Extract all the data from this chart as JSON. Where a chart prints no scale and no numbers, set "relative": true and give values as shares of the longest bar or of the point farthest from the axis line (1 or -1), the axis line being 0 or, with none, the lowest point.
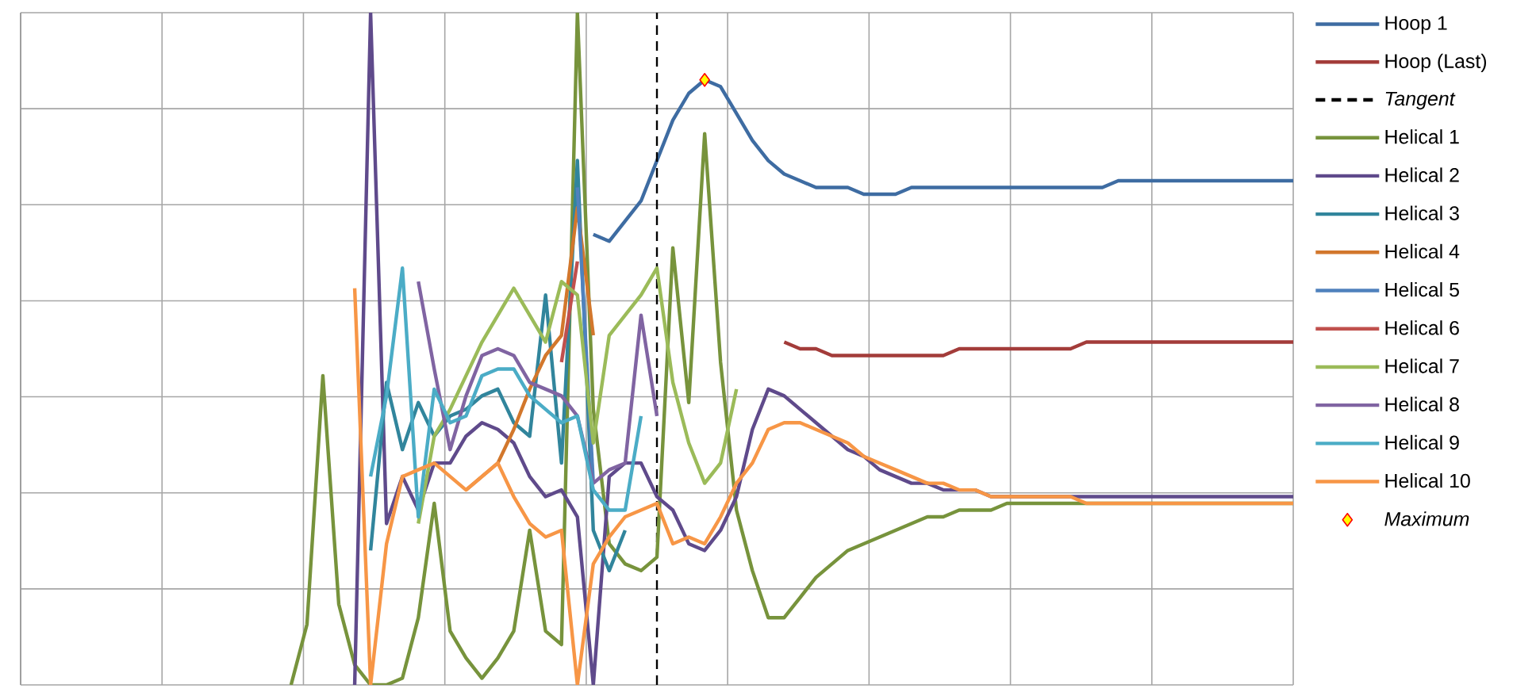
{
  "chart_data": {
    "type": "line",
    "relative": true,
    "grid": true,
    "legend": "right",
    "tick_labels": false,
    "line_style": "solid",
    "categories": [
      null,
      null,
      null,
      null,
      null,
      null,
      null,
      null,
      null,
      null,
      null,
      null,
      null,
      null,
      null,
      null,
      null,
      null,
      null,
      null,
      null,
      null,
      null,
      null,
      null,
      null,
      null,
      null,
      null,
      null,
      null,
      null,
      null,
      null,
      null,
      null,
      null,
      null,
      null,
      null,
      null,
      null,
      null,
      null,
      null,
      null,
      null,
      null,
      null,
      null,
      null,
      null,
      null,
      null,
      null,
      null,
      null,
      null,
      null,
      null,
      null,
      null,
      null,
      null,
      null,
      null,
      null,
      null,
      null,
      null,
      null,
      null,
      null,
      null,
      null,
      null,
      null,
      null,
      null,
      null,
      null
    ],
    "ref_lines": [
      {
        "axis": "x",
        "label": "Tangent",
        "color": "#000000",
        "line_style": "dashed"
      }
    ],
    "series": [
      {
        "name": "Hoop 1",
        "color": "#3e6ca2",
        "values": [
          null,
          null,
          null,
          null,
          null,
          null,
          null,
          null,
          null,
          null,
          null,
          null,
          null,
          null,
          null,
          null,
          null,
          null,
          null,
          null,
          null,
          null,
          null,
          null,
          null,
          null,
          null,
          null,
          null,
          null,
          null,
          null,
          null,
          null,
          null,
          null,
          0.67,
          0.66,
          0.69,
          0.72,
          0.78,
          0.84,
          0.88,
          0.9,
          0.89,
          0.85,
          0.81,
          0.78,
          0.76,
          0.75,
          0.74,
          0.74,
          0.74,
          0.73,
          0.73,
          0.73,
          0.74,
          0.74,
          0.74,
          0.74,
          0.74,
          0.74,
          0.74,
          0.74,
          0.74,
          0.74,
          0.74,
          0.74,
          0.74,
          0.75,
          0.75,
          0.75,
          0.75,
          0.75,
          0.75,
          0.75,
          0.75,
          0.75,
          0.75,
          0.75,
          0.75
        ]
      },
      {
        "name": "Hoop (Last)",
        "color": "#a33c3a",
        "values": [
          null,
          null,
          null,
          null,
          null,
          null,
          null,
          null,
          null,
          null,
          null,
          null,
          null,
          null,
          null,
          null,
          null,
          null,
          null,
          null,
          null,
          null,
          null,
          null,
          null,
          null,
          null,
          null,
          null,
          null,
          null,
          null,
          null,
          null,
          null,
          null,
          null,
          null,
          null,
          null,
          null,
          null,
          null,
          null,
          null,
          null,
          null,
          null,
          0.51,
          0.5,
          0.5,
          0.49,
          0.49,
          0.49,
          0.49,
          0.49,
          0.49,
          0.49,
          0.49,
          0.5,
          0.5,
          0.5,
          0.5,
          0.5,
          0.5,
          0.5,
          0.5,
          0.51,
          0.51,
          0.51,
          0.51,
          0.51,
          0.51,
          0.51,
          0.51,
          0.51,
          0.51,
          0.51,
          0.51,
          0.51,
          0.51
        ]
      },
      {
        "name": "Helical 1",
        "color": "#77933c",
        "values": [
          null,
          null,
          null,
          null,
          null,
          null,
          null,
          null,
          null,
          null,
          null,
          null,
          null,
          null,
          null,
          null,
          null,
          0.0,
          0.09,
          0.46,
          0.12,
          0.03,
          0.0,
          0.0,
          0.01,
          0.1,
          0.27,
          0.08,
          0.04,
          0.01,
          0.04,
          0.08,
          0.23,
          0.08,
          0.06,
          1.0,
          0.41,
          0.21,
          0.18,
          0.17,
          0.19,
          0.65,
          0.42,
          0.82,
          0.48,
          0.26,
          0.17,
          0.1,
          0.1,
          0.13,
          0.16,
          0.18,
          0.2,
          0.21,
          0.22,
          0.23,
          0.24,
          0.25,
          0.25,
          0.26,
          0.26,
          0.26,
          0.27,
          0.27,
          0.27,
          0.27,
          0.27,
          0.27,
          0.27,
          0.27,
          0.27,
          0.27,
          0.27,
          0.27,
          0.27,
          0.27,
          0.27,
          0.27,
          0.27,
          0.27,
          0.27
        ]
      },
      {
        "name": "Helical 2",
        "color": "#5f4a8b",
        "values": [
          null,
          null,
          null,
          null,
          null,
          null,
          null,
          null,
          null,
          null,
          null,
          null,
          null,
          null,
          null,
          null,
          null,
          null,
          null,
          null,
          null,
          0.0,
          1.0,
          0.24,
          0.31,
          0.26,
          0.33,
          0.33,
          0.37,
          0.39,
          0.38,
          0.36,
          0.31,
          0.28,
          0.29,
          0.25,
          0.0,
          0.31,
          0.33,
          0.33,
          0.28,
          0.26,
          0.21,
          0.2,
          0.23,
          0.28,
          0.38,
          0.44,
          0.43,
          0.41,
          0.39,
          0.37,
          0.35,
          0.34,
          0.32,
          0.31,
          0.3,
          0.3,
          0.29,
          0.29,
          0.29,
          0.28,
          0.28,
          0.28,
          0.28,
          0.28,
          0.28,
          0.28,
          0.28,
          0.28,
          0.28,
          0.28,
          0.28,
          0.28,
          0.28,
          0.28,
          0.28,
          0.28,
          0.28,
          0.28,
          0.28
        ]
      },
      {
        "name": "Helical 3",
        "color": "#31859c",
        "values": [
          null,
          null,
          null,
          null,
          null,
          null,
          null,
          null,
          null,
          null,
          null,
          null,
          null,
          null,
          null,
          null,
          null,
          null,
          null,
          null,
          null,
          null,
          0.2,
          0.45,
          0.35,
          0.42,
          0.37,
          0.4,
          0.41,
          0.43,
          0.44,
          0.39,
          0.37,
          0.58,
          0.33,
          0.78,
          0.23,
          0.17,
          0.23,
          null,
          null,
          null,
          null,
          null,
          null,
          null,
          null,
          null,
          null,
          null,
          null,
          null,
          null,
          null,
          null,
          null,
          null,
          null,
          null,
          null,
          null,
          null,
          null,
          null,
          null,
          null,
          null,
          null,
          null,
          null,
          null,
          null,
          null,
          null,
          null,
          null,
          null,
          null,
          null,
          null,
          null
        ]
      },
      {
        "name": "Helical 4",
        "color": "#d2772c",
        "values": [
          null,
          null,
          null,
          null,
          null,
          null,
          null,
          null,
          null,
          null,
          null,
          null,
          null,
          null,
          null,
          null,
          null,
          null,
          null,
          null,
          null,
          null,
          null,
          null,
          null,
          null,
          null,
          null,
          0.29,
          0.31,
          0.33,
          0.38,
          0.44,
          0.49,
          0.52,
          0.71,
          0.52,
          null,
          null,
          null,
          null,
          null,
          null,
          null,
          null,
          null,
          null,
          null,
          null,
          null,
          null,
          null,
          null,
          null,
          null,
          null,
          null,
          null,
          null,
          null,
          null,
          null,
          null,
          null,
          null,
          null,
          null,
          null,
          null,
          null,
          null,
          null,
          null,
          null,
          null,
          null,
          null,
          null,
          null,
          null,
          null
        ]
      },
      {
        "name": "Helical 5",
        "color": "#4f81bd",
        "values": [
          null,
          null,
          null,
          null,
          null,
          null,
          null,
          null,
          null,
          null,
          null,
          null,
          null,
          null,
          null,
          null,
          null,
          null,
          null,
          null,
          null,
          null,
          null,
          null,
          null,
          null,
          null,
          null,
          null,
          null,
          null,
          null,
          null,
          null,
          null,
          0.74,
          0.3,
          null,
          null,
          null,
          null,
          null,
          null,
          null,
          null,
          null,
          null,
          null,
          null,
          null,
          null,
          null,
          null,
          null,
          null,
          null,
          null,
          null,
          null,
          null,
          null,
          null,
          null,
          null,
          null,
          null,
          null,
          null,
          null,
          null,
          null,
          null,
          null,
          null,
          null,
          null,
          null,
          null,
          null,
          null,
          null
        ]
      },
      {
        "name": "Helical 6",
        "color": "#c0504d",
        "values": [
          null,
          null,
          null,
          null,
          null,
          null,
          null,
          null,
          null,
          null,
          null,
          null,
          null,
          null,
          null,
          null,
          null,
          null,
          null,
          null,
          null,
          null,
          null,
          null,
          null,
          null,
          null,
          null,
          null,
          null,
          null,
          null,
          null,
          null,
          0.48,
          0.63,
          null,
          null,
          null,
          null,
          null,
          null,
          null,
          null,
          null,
          null,
          null,
          null,
          null,
          null,
          null,
          null,
          null,
          null,
          null,
          null,
          null,
          null,
          null,
          null,
          null,
          null,
          null,
          null,
          null,
          null,
          null,
          null,
          null,
          null,
          null,
          null,
          null,
          null,
          null,
          null,
          null,
          null,
          null,
          null,
          null
        ]
      },
      {
        "name": "Helical 7",
        "color": "#9bbb59",
        "values": [
          null,
          null,
          null,
          null,
          null,
          null,
          null,
          null,
          null,
          null,
          null,
          null,
          null,
          null,
          null,
          null,
          null,
          null,
          null,
          null,
          null,
          null,
          null,
          null,
          null,
          0.24,
          0.37,
          0.41,
          0.46,
          0.51,
          0.55,
          0.59,
          0.55,
          0.51,
          0.6,
          0.58,
          0.36,
          0.52,
          0.55,
          0.58,
          0.62,
          0.45,
          0.36,
          0.3,
          0.33,
          0.44,
          null,
          null,
          null,
          null,
          null,
          null,
          null,
          null,
          null,
          null,
          null,
          null,
          null,
          null,
          null,
          null,
          null,
          null,
          null,
          null,
          null,
          null,
          null,
          null,
          null,
          null,
          null,
          null,
          null,
          null,
          null,
          null,
          null,
          null,
          null
        ]
      },
      {
        "name": "Helical 8",
        "color": "#8064a2",
        "values": [
          null,
          null,
          null,
          null,
          null,
          null,
          null,
          null,
          null,
          null,
          null,
          null,
          null,
          null,
          null,
          null,
          null,
          null,
          null,
          null,
          null,
          null,
          null,
          null,
          null,
          0.6,
          0.47,
          0.35,
          0.43,
          0.49,
          0.5,
          0.49,
          0.45,
          0.44,
          0.43,
          0.4,
          0.3,
          0.32,
          0.33,
          0.55,
          0.4,
          null,
          null,
          null,
          null,
          null,
          null,
          null,
          null,
          null,
          null,
          null,
          null,
          null,
          null,
          null,
          null,
          null,
          null,
          null,
          null,
          null,
          null,
          null,
          null,
          null,
          null,
          null,
          null,
          null,
          null,
          null,
          null,
          null,
          null,
          null,
          null,
          null,
          null,
          null,
          null
        ]
      },
      {
        "name": "Helical 9",
        "color": "#4bacc6",
        "values": [
          null,
          null,
          null,
          null,
          null,
          null,
          null,
          null,
          null,
          null,
          null,
          null,
          null,
          null,
          null,
          null,
          null,
          null,
          null,
          null,
          null,
          null,
          0.31,
          0.43,
          0.62,
          0.25,
          0.44,
          0.39,
          0.4,
          0.46,
          0.47,
          0.47,
          0.43,
          0.41,
          0.39,
          0.4,
          0.29,
          0.26,
          0.26,
          0.4,
          null,
          null,
          null,
          null,
          null,
          null,
          null,
          null,
          null,
          null,
          null,
          null,
          null,
          null,
          null,
          null,
          null,
          null,
          null,
          null,
          null,
          null,
          null,
          null,
          null,
          null,
          null,
          null,
          null,
          null,
          null,
          null,
          null,
          null,
          null,
          null,
          null,
          null,
          null,
          null,
          null
        ]
      },
      {
        "name": "Helical 10",
        "color": "#f79646",
        "values": [
          null,
          null,
          null,
          null,
          null,
          null,
          null,
          null,
          null,
          null,
          null,
          null,
          null,
          null,
          null,
          null,
          null,
          null,
          null,
          null,
          null,
          0.59,
          0.0,
          0.21,
          0.31,
          0.32,
          0.33,
          0.31,
          0.29,
          0.31,
          0.33,
          0.28,
          0.24,
          0.22,
          0.23,
          0.0,
          0.18,
          0.22,
          0.25,
          0.26,
          0.27,
          0.21,
          0.22,
          0.21,
          0.25,
          0.3,
          0.33,
          0.38,
          0.39,
          0.39,
          0.38,
          0.37,
          0.36,
          0.34,
          0.33,
          0.32,
          0.31,
          0.3,
          0.3,
          0.29,
          0.29,
          0.28,
          0.28,
          0.28,
          0.28,
          0.28,
          0.28,
          0.27,
          0.27,
          0.27,
          0.27,
          0.27,
          0.27,
          0.27,
          0.27,
          0.27,
          0.27,
          0.27,
          0.27,
          0.27,
          0.27
        ]
      },
      {
        "name": "Maximum",
        "type": "line",
        "marker": "diamond",
        "line_style": "none",
        "color": "#ffff00",
        "values": [
          null,
          null,
          null,
          null,
          null,
          null,
          null,
          null,
          null,
          null,
          null,
          null,
          null,
          null,
          null,
          null,
          null,
          null,
          null,
          null,
          null,
          null,
          null,
          null,
          null,
          null,
          null,
          null,
          null,
          null,
          null,
          null,
          null,
          null,
          null,
          null,
          null,
          null,
          null,
          null,
          null,
          null,
          null,
          0.9,
          null,
          null,
          null,
          null,
          null,
          null,
          null,
          null,
          null,
          null,
          null,
          null,
          null,
          null,
          null,
          null,
          null,
          null,
          null,
          null,
          null,
          null,
          null,
          null,
          null,
          null,
          null,
          null,
          null,
          null,
          null,
          null,
          null,
          null,
          null,
          null,
          null
        ]
      }
    ]
  }
}
